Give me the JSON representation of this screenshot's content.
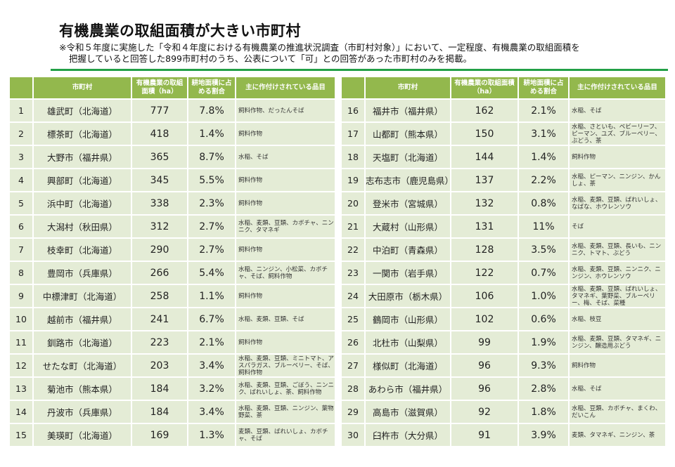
{
  "title": "有機農業の取組面積が大きい市町村",
  "note_line1": "※令和５年度に実施した「令和４年度における有機農業の推進状況調査（市町村対象）」において、一定程度、有機農業の取組面積を",
  "note_line2": "把握していると回答した899市町村のうち、公表について「可」との回答があった市町村のみを掲載。",
  "headers": {
    "rank": "",
    "name": "市町村",
    "area": "有機農業の取組面積（ha）",
    "ratio": "耕地面積に占める割合",
    "crops": "主に作付けされている品目"
  },
  "rows": [
    {
      "rank": "1",
      "name": "雄武町（北海道）",
      "area": "777",
      "ratio": "7.8%",
      "crops": "飼料作物、だったんそば"
    },
    {
      "rank": "2",
      "name": "標茶町（北海道）",
      "area": "418",
      "ratio": "1.4%",
      "crops": "飼料作物"
    },
    {
      "rank": "3",
      "name": "大野市（福井県）",
      "area": "365",
      "ratio": "8.7%",
      "crops": "水稲、そば"
    },
    {
      "rank": "4",
      "name": "興部町（北海道）",
      "area": "345",
      "ratio": "5.5%",
      "crops": "飼料作物"
    },
    {
      "rank": "5",
      "name": "浜中町（北海道）",
      "area": "338",
      "ratio": "2.3%",
      "crops": "飼料作物"
    },
    {
      "rank": "6",
      "name": "大潟村（秋田県）",
      "area": "312",
      "ratio": "2.7%",
      "crops": "水稲、麦類、豆類、カボチャ、ニンニク、タマネギ"
    },
    {
      "rank": "7",
      "name": "枝幸町（北海道）",
      "area": "290",
      "ratio": "2.7%",
      "crops": "飼料作物"
    },
    {
      "rank": "8",
      "name": "豊岡市（兵庫県）",
      "area": "266",
      "ratio": "5.4%",
      "crops": "水稲、ニンジン、小松菜、カボチャ、そば、飼料作物"
    },
    {
      "rank": "9",
      "name": "中標津町（北海道）",
      "area": "258",
      "ratio": "1.1%",
      "crops": "飼料作物"
    },
    {
      "rank": "10",
      "name": "越前市（福井県）",
      "area": "241",
      "ratio": "6.7%",
      "crops": "水稲、麦類、豆類、そば"
    },
    {
      "rank": "11",
      "name": "釧路市（北海道）",
      "area": "223",
      "ratio": "2.1%",
      "crops": "飼料作物"
    },
    {
      "rank": "12",
      "name": "せたな町（北海道）",
      "area": "203",
      "ratio": "3.4%",
      "crops": "水稲、麦類、豆類、ミニトマト、アスパラガス、ブルーベリー、そば、飼料作物"
    },
    {
      "rank": "13",
      "name": "菊池市（熊本県）",
      "area": "184",
      "ratio": "3.2%",
      "crops": "水稲、麦類、豆類、ごぼう、ニンニク、ばれいしょ、茶、飼料作物"
    },
    {
      "rank": "14",
      "name": "丹波市（兵庫県）",
      "area": "184",
      "ratio": "3.4%",
      "crops": "水稲、麦類、豆類、ニンジン、葉物野菜、茶"
    },
    {
      "rank": "15",
      "name": "美瑛町（北海道）",
      "area": "169",
      "ratio": "1.3%",
      "crops": "麦類、豆類、ばれいしょ、カボチャ、そば"
    },
    {
      "rank": "16",
      "name": "福井市（福井県）",
      "area": "162",
      "ratio": "2.1%",
      "crops": "水稲、そば"
    },
    {
      "rank": "17",
      "name": "山都町（熊本県）",
      "area": "150",
      "ratio": "3.1%",
      "crops": "水稲、さといも、ベビーリーフ、ピーマン、ユズ、ブルーベリー、ぶどう、茶"
    },
    {
      "rank": "18",
      "name": "天塩町（北海道）",
      "area": "144",
      "ratio": "1.4%",
      "crops": "飼料作物"
    },
    {
      "rank": "19",
      "name": "志布志市（鹿児島県）",
      "area": "137",
      "ratio": "2.2%",
      "crops": "水稲、ピーマン、ニンジン、かんしょ、茶"
    },
    {
      "rank": "20",
      "name": "登米市（宮城県）",
      "area": "132",
      "ratio": "0.8%",
      "crops": "水稲、麦類、豆類、ばれいしょ、なばな、ホウレンソウ"
    },
    {
      "rank": "21",
      "name": "大蔵村（山形県）",
      "area": "131",
      "ratio": "11%",
      "crops": "そば"
    },
    {
      "rank": "22",
      "name": "中泊町（青森県）",
      "area": "128",
      "ratio": "3.5%",
      "crops": "水稲、麦類、豆類、長いも、ニンニク、トマト、ぶどう"
    },
    {
      "rank": "23",
      "name": "一関市（岩手県）",
      "area": "122",
      "ratio": "0.7%",
      "crops": "水稲、麦類、豆類、ニンニク、ニンジン、ホウレンソウ"
    },
    {
      "rank": "24",
      "name": "大田原市（栃木県）",
      "area": "106",
      "ratio": "1.0%",
      "crops": "水稲、麦類、豆類、ばれいしょ、タマネギ、葉野菜、ブルーベリー、梅、そば、菜種"
    },
    {
      "rank": "25",
      "name": "鶴岡市（山形県）",
      "area": "102",
      "ratio": "0.6%",
      "crops": "水稲、枝豆"
    },
    {
      "rank": "26",
      "name": "北杜市（山梨県）",
      "area": "99",
      "ratio": "1.9%",
      "crops": "水稲、麦類、豆類、タマネギ、ニンジン、醸造用ぶどう"
    },
    {
      "rank": "27",
      "name": "様似町（北海道）",
      "area": "96",
      "ratio": "9.3%",
      "crops": "飼料作物"
    },
    {
      "rank": "28",
      "name": "あわら市（福井県）",
      "area": "96",
      "ratio": "2.8%",
      "crops": "水稲、そば"
    },
    {
      "rank": "29",
      "name": "高島市（滋賀県）",
      "area": "92",
      "ratio": "1.8%",
      "crops": "水稲、豆類、カボチャ、まくわ、だいこん"
    },
    {
      "rank": "30",
      "name": "臼杵市（大分県）",
      "area": "91",
      "ratio": "3.9%",
      "crops": "麦類、タマネギ、ニンジン、茶"
    }
  ]
}
